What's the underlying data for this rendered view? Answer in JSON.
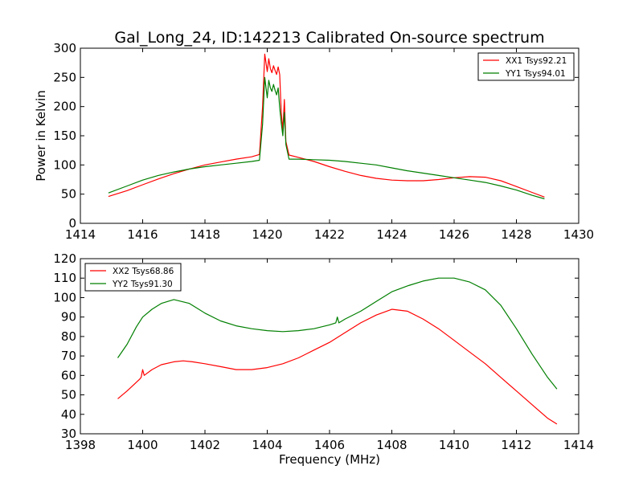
{
  "title": "Gal_Long_24, ID:142213 Calibrated On-source spectrum",
  "colors": {
    "red": "#ff0000",
    "green": "#007f00",
    "axis": "#000000",
    "background": "#ffffff"
  },
  "chart_data": [
    {
      "type": "line",
      "ylabel": "Power in Kelvin",
      "xlabel": "",
      "xlim": [
        1414,
        1430
      ],
      "ylim": [
        0,
        300
      ],
      "xticks": [
        "1414",
        "1416",
        "1418",
        "1420",
        "1422",
        "1424",
        "1426",
        "1428",
        "1430"
      ],
      "yticks": [
        "0",
        "50",
        "100",
        "150",
        "200",
        "250",
        "300"
      ],
      "legend_position": "top-right",
      "series": [
        {
          "name": "XX1 Tsys92.21",
          "color": "#ff0000",
          "x": [
            1414.9,
            1415.5,
            1416.0,
            1416.5,
            1417.0,
            1417.5,
            1418.0,
            1418.5,
            1419.0,
            1419.5,
            1419.75,
            1419.85,
            1419.92,
            1420.0,
            1420.05,
            1420.1,
            1420.15,
            1420.2,
            1420.25,
            1420.3,
            1420.35,
            1420.4,
            1420.45,
            1420.5,
            1420.55,
            1420.6,
            1420.7,
            1421.0,
            1421.5,
            1422.0,
            1422.5,
            1423.0,
            1423.5,
            1424.0,
            1424.5,
            1425.0,
            1425.5,
            1426.0,
            1426.5,
            1427.0,
            1427.5,
            1428.0,
            1428.5,
            1428.9
          ],
          "y": [
            46,
            56,
            66,
            76,
            85,
            93,
            100,
            105,
            110,
            114,
            118,
            200,
            290,
            260,
            282,
            265,
            258,
            270,
            262,
            255,
            268,
            255,
            190,
            160,
            212,
            140,
            117,
            113,
            106,
            97,
            89,
            82,
            77,
            74,
            73,
            73,
            75,
            78,
            80,
            79,
            73,
            63,
            53,
            45
          ]
        },
        {
          "name": "YY1 Tsys94.01",
          "color": "#007f00",
          "x": [
            1414.9,
            1415.5,
            1416.0,
            1416.5,
            1417.0,
            1417.5,
            1418.0,
            1418.5,
            1419.0,
            1419.5,
            1419.75,
            1419.85,
            1419.92,
            1420.0,
            1420.05,
            1420.1,
            1420.15,
            1420.2,
            1420.25,
            1420.3,
            1420.35,
            1420.4,
            1420.45,
            1420.5,
            1420.55,
            1420.6,
            1420.7,
            1421.0,
            1421.5,
            1422.0,
            1422.5,
            1423.0,
            1423.5,
            1424.0,
            1424.5,
            1425.0,
            1425.5,
            1426.0,
            1426.5,
            1427.0,
            1427.5,
            1428.0,
            1428.5,
            1428.9
          ],
          "y": [
            52,
            64,
            74,
            82,
            88,
            93,
            97,
            100,
            103,
            106,
            108,
            170,
            250,
            215,
            245,
            232,
            226,
            238,
            228,
            220,
            232,
            198,
            172,
            150,
            190,
            135,
            110,
            110,
            109,
            108,
            106,
            103,
            100,
            95,
            90,
            86,
            82,
            78,
            74,
            70,
            64,
            57,
            48,
            42
          ]
        }
      ]
    },
    {
      "type": "line",
      "ylabel": "",
      "xlabel": "Frequency (MHz)",
      "xlim": [
        1398,
        1414
      ],
      "ylim": [
        30,
        120
      ],
      "xticks": [
        "1398",
        "1400",
        "1402",
        "1404",
        "1406",
        "1408",
        "1410",
        "1412",
        "1414"
      ],
      "yticks": [
        "30",
        "40",
        "50",
        "60",
        "70",
        "80",
        "90",
        "100",
        "110",
        "120"
      ],
      "legend_position": "top-left",
      "series": [
        {
          "name": "XX2 Tsys68.86",
          "color": "#ff0000",
          "x": [
            1399.2,
            1399.5,
            1399.9,
            1399.95,
            1400.0,
            1400.05,
            1400.3,
            1400.6,
            1401.0,
            1401.3,
            1401.6,
            1402.0,
            1402.5,
            1403.0,
            1403.5,
            1404.0,
            1404.5,
            1405.0,
            1405.5,
            1406.0,
            1406.5,
            1407.0,
            1407.5,
            1408.0,
            1408.5,
            1409.0,
            1409.5,
            1410.0,
            1410.5,
            1411.0,
            1411.5,
            1412.0,
            1412.5,
            1413.0,
            1413.3
          ],
          "y": [
            48,
            52,
            58,
            59,
            63,
            60,
            63,
            65.5,
            67,
            67.5,
            67,
            66,
            64.5,
            63,
            63,
            64,
            66,
            69,
            73,
            77,
            82,
            87,
            91,
            94,
            93,
            89,
            84,
            78,
            72,
            66,
            59,
            52,
            45,
            38,
            35
          ]
        },
        {
          "name": "YY2 Tsys91.30",
          "color": "#007f00",
          "x": [
            1399.2,
            1399.5,
            1399.8,
            1400.0,
            1400.3,
            1400.6,
            1401.0,
            1401.5,
            1402.0,
            1402.5,
            1403.0,
            1403.5,
            1404.0,
            1404.5,
            1405.0,
            1405.5,
            1406.0,
            1406.2,
            1406.25,
            1406.3,
            1406.5,
            1407.0,
            1407.5,
            1408.0,
            1408.5,
            1409.0,
            1409.5,
            1410.0,
            1410.5,
            1411.0,
            1411.5,
            1412.0,
            1412.5,
            1413.0,
            1413.3
          ],
          "y": [
            69,
            76,
            85,
            90,
            94,
            97,
            99,
            97,
            92,
            88,
            85.5,
            84,
            83,
            82.5,
            83,
            84,
            86,
            87,
            90,
            87,
            89,
            93,
            98,
            103,
            106,
            108.5,
            110,
            110,
            108,
            104,
            96,
            84,
            71,
            59,
            53
          ]
        }
      ]
    }
  ]
}
